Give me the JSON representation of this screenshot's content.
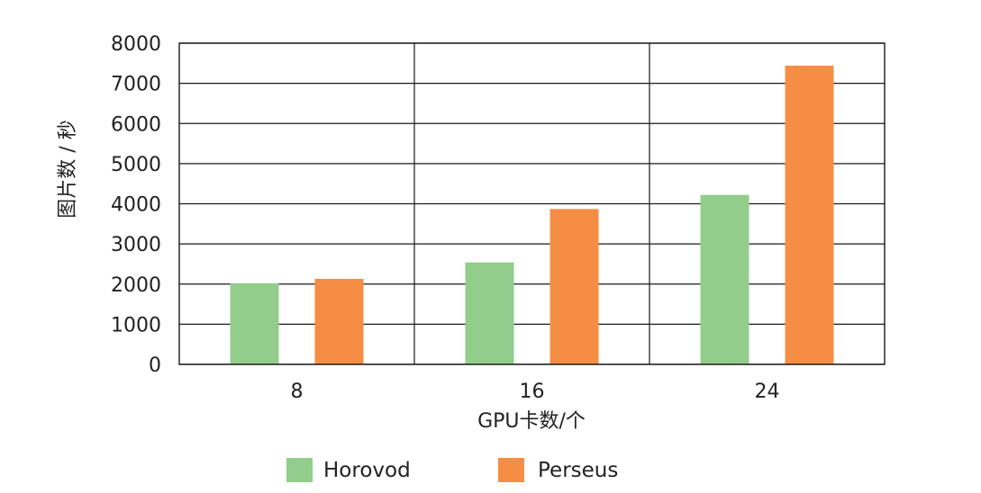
{
  "chart_data": {
    "type": "bar",
    "title": "",
    "xlabel": "GPU卡数/个",
    "ylabel": "图片数 / 秒",
    "categories": [
      "8",
      "16",
      "24"
    ],
    "series": [
      {
        "name": "Horovod",
        "color": "#92cd8b",
        "values": [
          2020,
          2540,
          4220
        ]
      },
      {
        "name": "Perseus",
        "color": "#f68d45",
        "values": [
          2130,
          3870,
          7440
        ]
      }
    ],
    "ylim": [
      0,
      8000
    ],
    "yticks": [
      "0",
      "1000",
      "2000",
      "3000",
      "4000",
      "5000",
      "6000",
      "7000",
      "8000"
    ],
    "grid": true,
    "legend_position": "bottom-center"
  }
}
